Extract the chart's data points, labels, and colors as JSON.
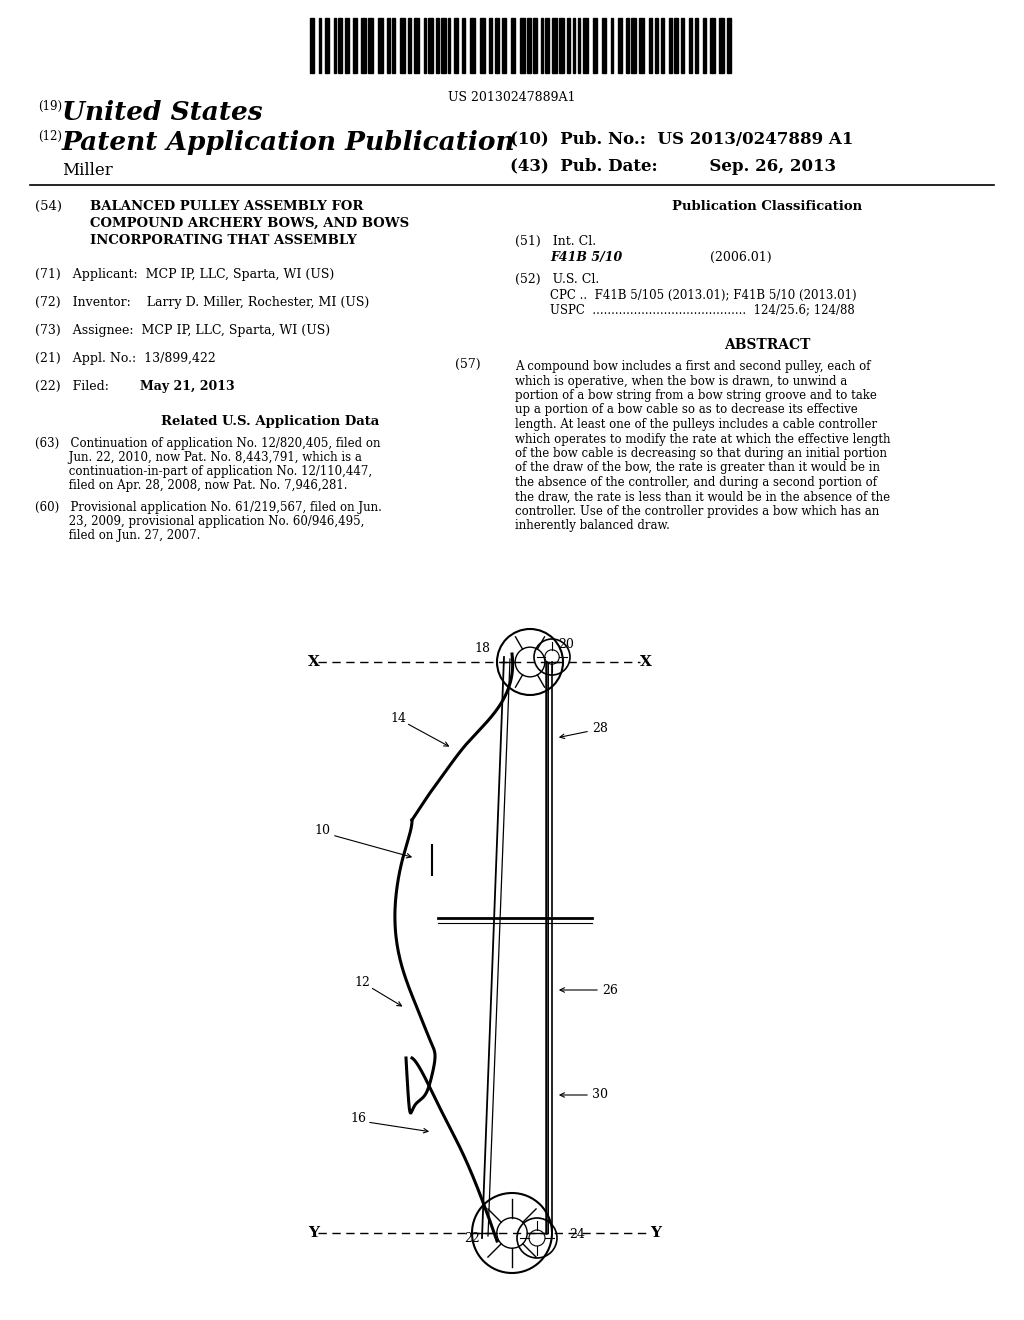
{
  "bg_color": "#ffffff",
  "barcode_text": "US 20130247889A1",
  "header_19": "(19)",
  "header_19_text": "United States",
  "header_12": "(12)",
  "header_12_text": "Patent Application Publication",
  "header_10_text": "(10)  Pub. No.:  US 2013/0247889 A1",
  "header_43_text": "(43)  Pub. Date:         Sep. 26, 2013",
  "inventor_name": "Miller",
  "section54_label": "(54)",
  "section54_title": "BALANCED PULLEY ASSEMBLY FOR\nCOMPOUND ARCHERY BOWS, AND BOWS\nINCORPORATING THAT ASSEMBLY",
  "section71": "(71)   Applicant:  MCP IP, LLC, Sparta, WI (US)",
  "section72": "(72)   Inventor:    Larry D. Miller, Rochester, MI (US)",
  "section73": "(73)   Assignee:  MCP IP, LLC, Sparta, WI (US)",
  "section21": "(21)   Appl. No.:  13/899,422",
  "section22_label": "(22)   Filed:",
  "section22_date": "May 21, 2013",
  "related_header": "Related U.S. Application Data",
  "section63": "(63)   Continuation of application No. 12/820,405, filed on\n         Jun. 22, 2010, now Pat. No. 8,443,791, which is a\n         continuation-in-part of application No. 12/110,447,\n         filed on Apr. 28, 2008, now Pat. No. 7,946,281.",
  "section60": "(60)   Provisional application No. 61/219,567, filed on Jun.\n         23, 2009, provisional application No. 60/946,495,\n         filed on Jun. 27, 2007.",
  "pub_class_header": "Publication Classification",
  "section51_label": "(51)   Int. Cl.",
  "section51_class": "F41B 5/10",
  "section51_date": "(2006.01)",
  "section52_label": "(52)   U.S. Cl.",
  "section52_cpc": "CPC ..  F41B 5/105 (2013.01); F41B 5/10 (2013.01)",
  "section52_uspc": "USPC  .........................................  124/25.6; 124/88",
  "section57_label": "(57)",
  "abstract_header": "ABSTRACT",
  "abstract_text": "A compound bow includes a first and second pulley, each of\nwhich is operative, when the bow is drawn, to unwind a\nportion of a bow string from a bow string groove and to take\nup a portion of a bow cable so as to decrease its effective\nlength. At least one of the pulleys includes a cable controller\nwhich operates to modify the rate at which the effective length\nof the bow cable is decreasing so that during an initial portion\nof the draw of the bow, the rate is greater than it would be in\nthe absence of the controller, and during a second portion of\nthe draw, the rate is less than it would be in the absence of the\ncontroller. Use of the controller provides a bow which has an\ninherently balanced draw."
}
